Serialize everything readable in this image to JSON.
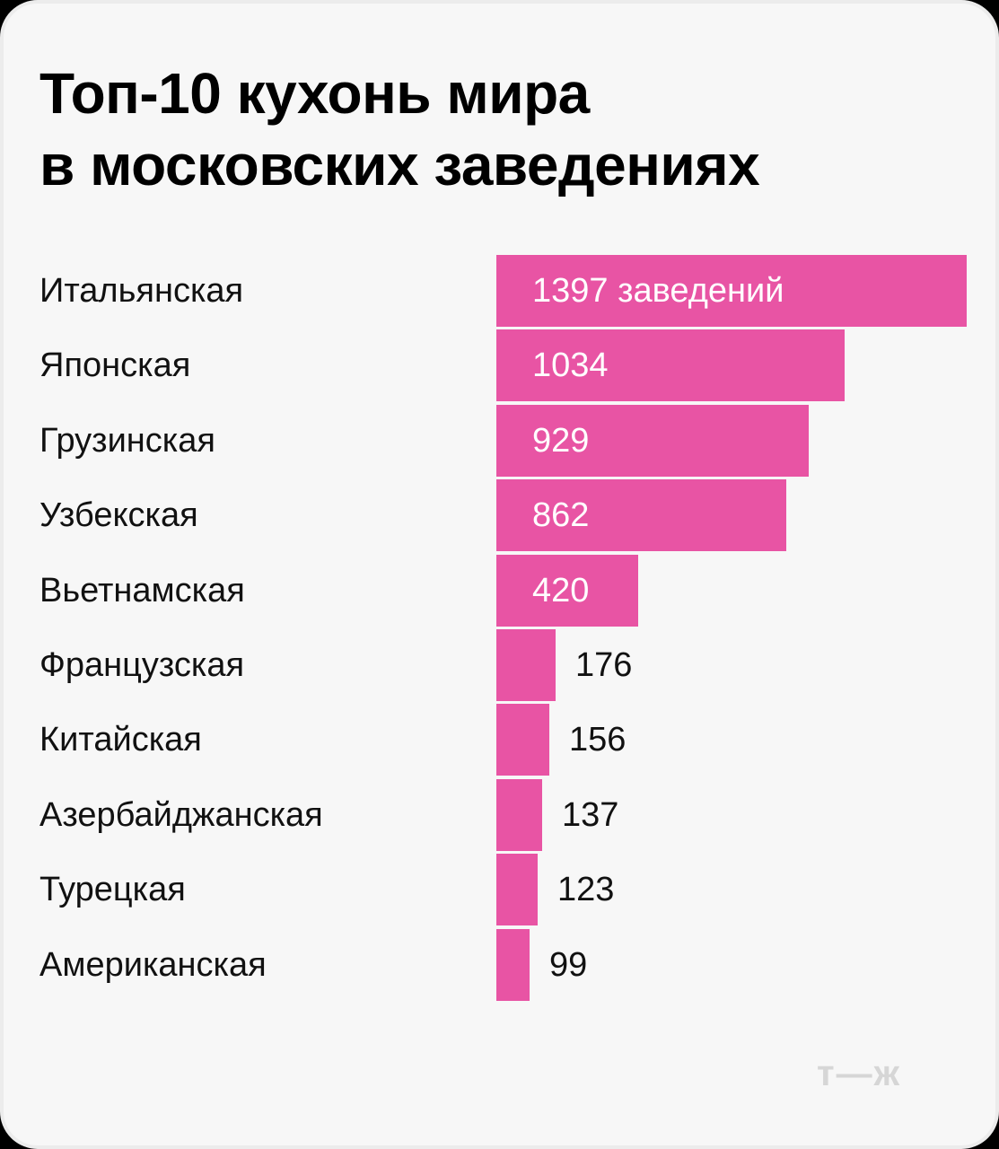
{
  "title": {
    "line1": "Топ-10 кухонь мира",
    "line2": "в московских заведениях"
  },
  "logo": "т—ж",
  "colors": {
    "bar": "#e854a4",
    "background": "#f7f7f7"
  },
  "rows": [
    {
      "label": "Итальянская",
      "value": 1397,
      "display": "1397 заведений"
    },
    {
      "label": "Японская",
      "value": 1034,
      "display": "1034"
    },
    {
      "label": "Грузинская",
      "value": 929,
      "display": "929"
    },
    {
      "label": "Узбекская",
      "value": 862,
      "display": "862"
    },
    {
      "label": "Вьетнамская",
      "value": 420,
      "display": "420"
    },
    {
      "label": "Французская",
      "value": 176,
      "display": "176"
    },
    {
      "label": "Китайская",
      "value": 156,
      "display": "156"
    },
    {
      "label": "Азербайджанская",
      "value": 137,
      "display": "137"
    },
    {
      "label": "Турецкая",
      "value": 123,
      "display": "123"
    },
    {
      "label": "Американская",
      "value": 99,
      "display": "99"
    }
  ],
  "chart_data": {
    "type": "bar",
    "orientation": "horizontal",
    "title": "Топ-10 кухонь мира в московских заведениях",
    "categories": [
      "Итальянская",
      "Японская",
      "Грузинская",
      "Узбекская",
      "Вьетнамская",
      "Французская",
      "Китайская",
      "Азербайджанская",
      "Турецкая",
      "Американская"
    ],
    "values": [
      1397,
      1034,
      929,
      862,
      420,
      176,
      156,
      137,
      123,
      99
    ],
    "unit": "заведений",
    "xlabel": "",
    "ylabel": "",
    "grid": false,
    "legend": null
  }
}
